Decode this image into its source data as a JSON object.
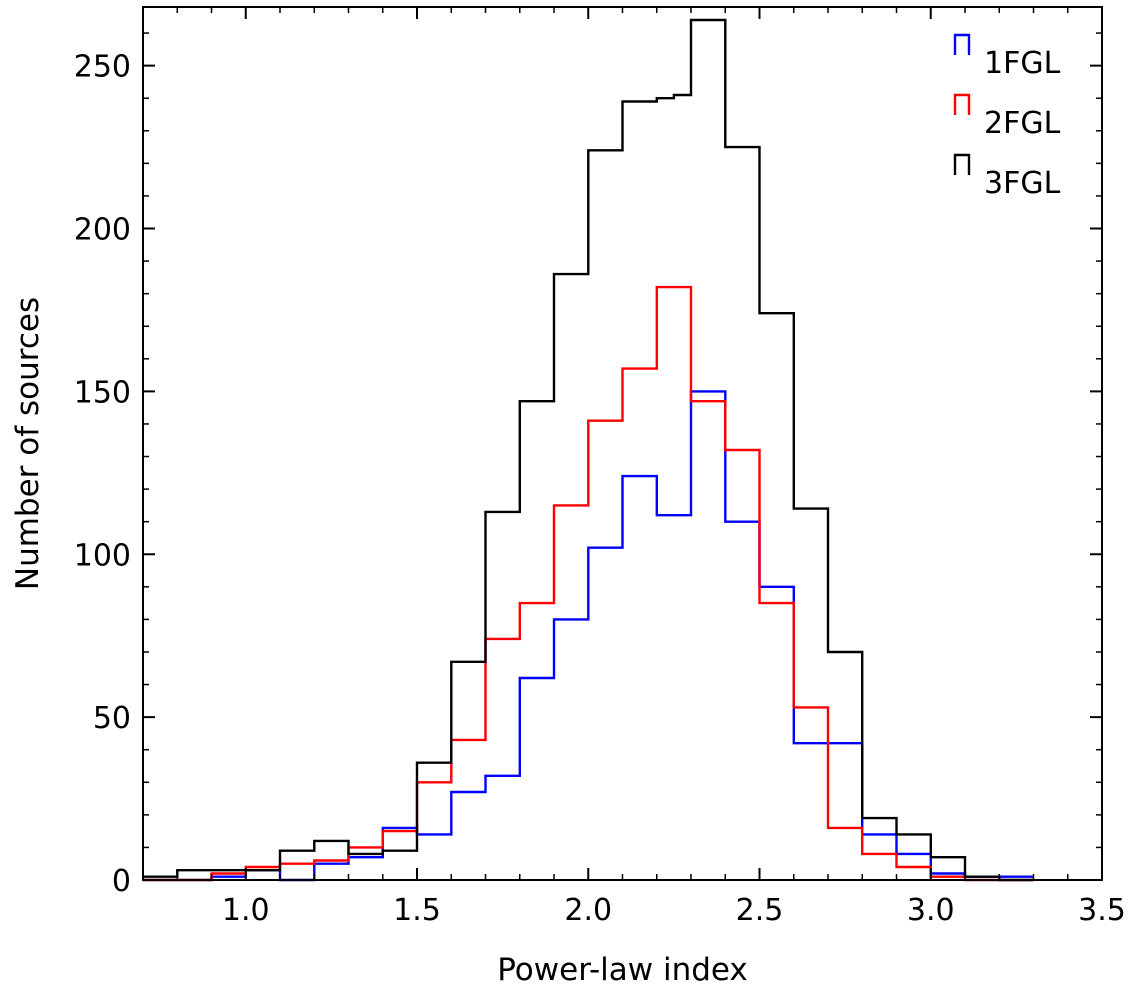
{
  "chart_data": {
    "type": "histogram",
    "title": "",
    "xlabel": "Power-law index",
    "ylabel": "Number of sources",
    "xlim": [
      0.7,
      3.5
    ],
    "ylim": [
      0,
      268
    ],
    "x_ticks": [
      1.0,
      1.5,
      2.0,
      2.5,
      3.0,
      3.5
    ],
    "x_tick_labels": [
      "1.0",
      "1.5",
      "2.0",
      "2.5",
      "3.0",
      "3.5"
    ],
    "y_ticks": [
      0,
      50,
      100,
      150,
      200,
      250
    ],
    "y_tick_labels": [
      "0",
      "50",
      "100",
      "150",
      "200",
      "250"
    ],
    "grid": false,
    "legend_position": "top-right",
    "bin_edges": [
      0.7,
      0.8,
      0.9,
      1.0,
      1.1,
      1.2,
      1.3,
      1.4,
      1.5,
      1.6,
      1.7,
      1.8,
      1.9,
      2.0,
      2.1,
      2.2,
      2.25,
      2.3,
      2.4,
      2.5,
      2.6,
      2.7,
      2.8,
      2.9,
      3.0,
      3.1,
      3.2,
      3.3
    ],
    "series": [
      {
        "name": "1FGL",
        "color": "#0000ff",
        "values": [
          0,
          0,
          1,
          3,
          0,
          5,
          7,
          16,
          14,
          27,
          32,
          62,
          80,
          102,
          124,
          112,
          112,
          150,
          110,
          90,
          42,
          42,
          14,
          8,
          2,
          1,
          1
        ]
      },
      {
        "name": "2FGL",
        "color": "#ff0000",
        "values": [
          0,
          0,
          2,
          4,
          5,
          6,
          10,
          15,
          30,
          43,
          74,
          85,
          115,
          141,
          157,
          182,
          182,
          147,
          132,
          85,
          53,
          16,
          8,
          4,
          1,
          0,
          0
        ]
      },
      {
        "name": "3FGL",
        "color": "#000000",
        "values": [
          1,
          3,
          3,
          3,
          9,
          12,
          8,
          9,
          36,
          67,
          113,
          147,
          186,
          224,
          239,
          240,
          241,
          264,
          225,
          174,
          114,
          70,
          19,
          14,
          7,
          1,
          0
        ]
      }
    ]
  }
}
